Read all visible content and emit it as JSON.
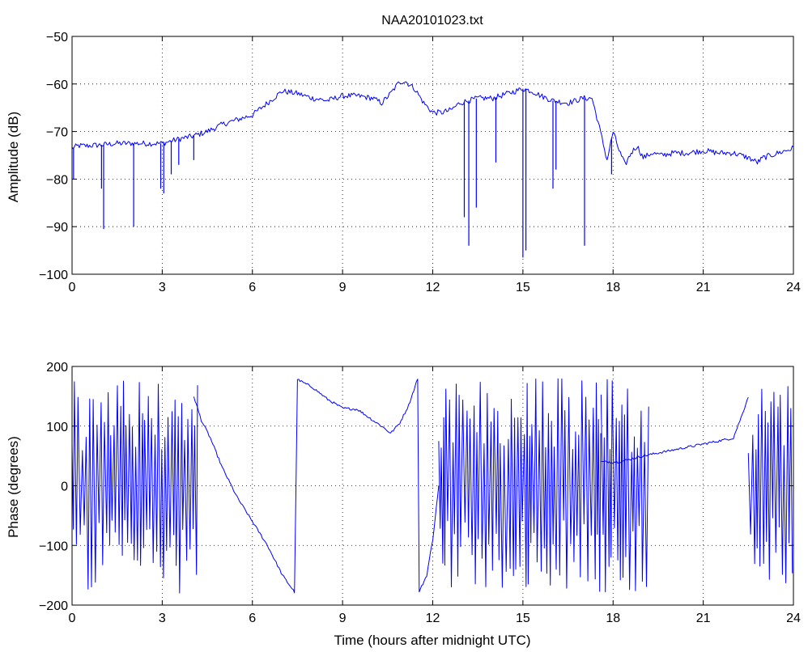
{
  "chart_data": [
    {
      "type": "line",
      "title": "NAA20101023.txt",
      "xlabel": "",
      "ylabel": "Amplitude (dB)",
      "xlim": [
        0,
        24
      ],
      "ylim": [
        -100,
        -50
      ],
      "xticks": [
        "0",
        "3",
        "6",
        "9",
        "12",
        "15",
        "18",
        "21",
        "24"
      ],
      "yticks": [
        "−50",
        "−60",
        "−70",
        "−80",
        "−90",
        "−100"
      ],
      "grid": true,
      "color": "#0000ff",
      "series": [
        {
          "x": [
            0,
            0.2,
            0.5,
            1.0,
            1.5,
            2.0,
            2.5,
            3.0,
            3.3,
            3.6,
            4.0,
            4.5,
            5.0,
            5.5,
            6.0,
            6.5,
            7.0,
            7.5,
            8.0,
            8.5,
            9.0,
            9.5,
            10.0,
            10.3,
            10.6,
            10.9,
            11.1,
            11.4,
            11.7,
            12.0,
            12.3,
            12.6,
            12.9,
            13.2,
            13.5,
            14.0,
            14.5,
            15.0,
            15.3,
            15.6,
            16.0,
            16.5,
            17.0,
            17.3,
            17.5,
            17.8,
            18.0,
            18.2,
            18.4,
            18.6,
            18.8,
            19.0,
            19.3,
            19.6,
            20.0,
            20.5,
            21.0,
            21.5,
            22.0,
            22.5,
            22.8,
            23.0,
            23.5,
            24.0
          ],
          "y": [
            -73.5,
            -73,
            -73,
            -72.8,
            -72.5,
            -72.5,
            -72.5,
            -72.5,
            -72,
            -71.5,
            -71,
            -70,
            -68.5,
            -67.5,
            -66.5,
            -64,
            -61.5,
            -62,
            -63,
            -63.5,
            -62.5,
            -62.5,
            -63,
            -64,
            -62,
            -59.5,
            -59.5,
            -61,
            -64,
            -66,
            -66,
            -65.5,
            -64,
            -63.5,
            -63,
            -63,
            -62,
            -61,
            -61.5,
            -62.5,
            -63.5,
            -64,
            -63,
            -63,
            -68,
            -76,
            -70,
            -74,
            -77,
            -74.5,
            -73,
            -75.5,
            -74.5,
            -75,
            -74.5,
            -74.5,
            -74,
            -74.5,
            -74.5,
            -75.5,
            -76.5,
            -75.5,
            -74.5,
            -73.5
          ],
          "spikes": [
            {
              "x": 0.05,
              "y": -80
            },
            {
              "x": 0.98,
              "y": -82
            },
            {
              "x": 1.05,
              "y": -90.5
            },
            {
              "x": 2.05,
              "y": -90
            },
            {
              "x": 2.95,
              "y": -82
            },
            {
              "x": 3.05,
              "y": -83
            },
            {
              "x": 3.3,
              "y": -79
            },
            {
              "x": 3.55,
              "y": -77
            },
            {
              "x": 4.05,
              "y": -76
            },
            {
              "x": 13.05,
              "y": -88
            },
            {
              "x": 13.2,
              "y": -94
            },
            {
              "x": 13.45,
              "y": -86
            },
            {
              "x": 14.1,
              "y": -76.5
            },
            {
              "x": 15.0,
              "y": -96.5
            },
            {
              "x": 15.1,
              "y": -95
            },
            {
              "x": 16.0,
              "y": -82
            },
            {
              "x": 16.1,
              "y": -78
            },
            {
              "x": 17.05,
              "y": -94
            },
            {
              "x": 17.95,
              "y": -79
            }
          ]
        }
      ]
    },
    {
      "type": "line",
      "title": "",
      "xlabel": "Time (hours after midnight UTC)",
      "ylabel": "Phase (degrees)",
      "xlim": [
        0,
        24
      ],
      "ylim": [
        -200,
        200
      ],
      "xticks": [
        "0",
        "3",
        "6",
        "9",
        "12",
        "15",
        "18",
        "21",
        "24"
      ],
      "yticks": [
        "200",
        "100",
        "0",
        "−100",
        "−200"
      ],
      "grid": true,
      "color": "#0000ff",
      "series": [
        {
          "x": [
            4.05,
            4.3,
            4.6,
            5.0,
            5.5,
            6.0,
            6.5,
            7.0,
            7.4,
            7.45,
            7.5,
            8.0,
            8.5,
            9.0,
            9.5,
            10.0,
            10.3,
            10.6,
            10.9,
            11.2,
            11.5,
            11.55,
            11.8,
            12.0,
            12.2
          ],
          "y": [
            150,
            110,
            80,
            30,
            -20,
            -60,
            -100,
            -150,
            -178,
            0,
            178,
            165,
            145,
            130,
            128,
            110,
            100,
            88,
            105,
            135,
            180,
            -178,
            -150,
            -90,
            0
          ]
        },
        {
          "x": [
            17.6,
            18.0,
            18.2,
            18.6,
            19.0,
            19.5,
            20.0,
            20.5,
            21.0,
            21.5,
            22.0,
            22.3,
            22.5
          ],
          "y": [
            40,
            40,
            40,
            45,
            50,
            55,
            60,
            65,
            70,
            75,
            80,
            120,
            150
          ]
        },
        {
          "noise_bands": [
            {
              "x": [
                0,
                4.2
              ],
              "range": [
                -180,
                180
              ]
            },
            {
              "x": [
                12.2,
                17.6
              ],
              "range": [
                -180,
                180
              ]
            },
            {
              "x": [
                17.6,
                19.2
              ],
              "range": [
                -180,
                180
              ]
            },
            {
              "x": [
                22.5,
                24
              ],
              "range": [
                -170,
                175
              ]
            }
          ]
        }
      ]
    }
  ]
}
